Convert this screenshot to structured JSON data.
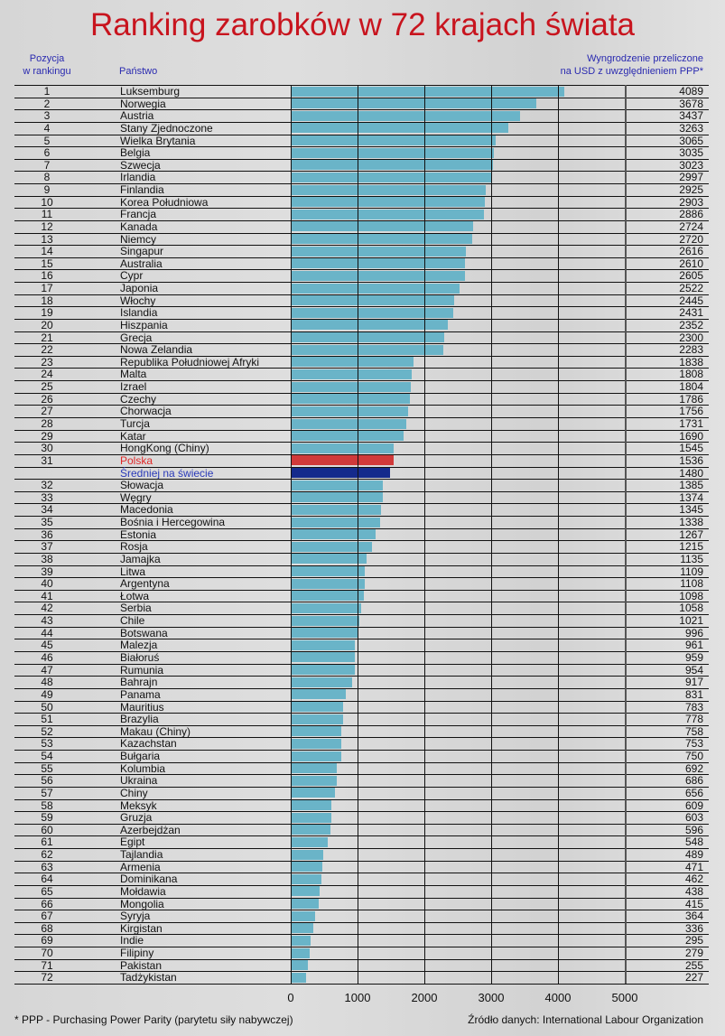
{
  "chart_data": {
    "type": "bar",
    "orientation": "horizontal",
    "title": "Ranking zarobków w 72 krajach świata",
    "column_headers": {
      "position": "Pozycja w rankingu",
      "country": "Państwo",
      "value": "Wyngrodzenie przeliczone na USD z uwzględnieniem PPP*"
    },
    "xlim": [
      0,
      5000
    ],
    "xticks": [
      "0",
      "1000",
      "2000",
      "3000",
      "4000",
      "5000"
    ],
    "grid": true,
    "colors": {
      "default": "#6ab4c8",
      "highlight": "#d03a3a",
      "average": "#142a8c",
      "title": "#c8141e"
    },
    "rows": [
      {
        "rank": "1",
        "country": "Luksemburg",
        "value": 4089
      },
      {
        "rank": "2",
        "country": "Norwegia",
        "value": 3678
      },
      {
        "rank": "3",
        "country": "Austria",
        "value": 3437
      },
      {
        "rank": "4",
        "country": "Stany Zjednoczone",
        "value": 3263
      },
      {
        "rank": "5",
        "country": "Wielka Brytania",
        "value": 3065
      },
      {
        "rank": "6",
        "country": "Belgia",
        "value": 3035
      },
      {
        "rank": "7",
        "country": "Szwecja",
        "value": 3023
      },
      {
        "rank": "8",
        "country": "Irlandia",
        "value": 2997
      },
      {
        "rank": "9",
        "country": "Finlandia",
        "value": 2925
      },
      {
        "rank": "10",
        "country": "Korea Południowa",
        "value": 2903
      },
      {
        "rank": "11",
        "country": "Francja",
        "value": 2886
      },
      {
        "rank": "12",
        "country": "Kanada",
        "value": 2724
      },
      {
        "rank": "13",
        "country": "Niemcy",
        "value": 2720
      },
      {
        "rank": "14",
        "country": "Singapur",
        "value": 2616
      },
      {
        "rank": "15",
        "country": "Australia",
        "value": 2610
      },
      {
        "rank": "16",
        "country": "Cypr",
        "value": 2605
      },
      {
        "rank": "17",
        "country": "Japonia",
        "value": 2522
      },
      {
        "rank": "18",
        "country": "Włochy",
        "value": 2445
      },
      {
        "rank": "19",
        "country": "Islandia",
        "value": 2431
      },
      {
        "rank": "20",
        "country": "Hiszpania",
        "value": 2352
      },
      {
        "rank": "21",
        "country": "Grecja",
        "value": 2300
      },
      {
        "rank": "22",
        "country": "Nowa Zelandia",
        "value": 2283
      },
      {
        "rank": "23",
        "country": "Republika Południowej Afryki",
        "value": 1838
      },
      {
        "rank": "24",
        "country": "Malta",
        "value": 1808
      },
      {
        "rank": "25",
        "country": "Izrael",
        "value": 1804
      },
      {
        "rank": "26",
        "country": "Czechy",
        "value": 1786
      },
      {
        "rank": "27",
        "country": "Chorwacja",
        "value": 1756
      },
      {
        "rank": "28",
        "country": "Turcja",
        "value": 1731
      },
      {
        "rank": "29",
        "country": "Katar",
        "value": 1690
      },
      {
        "rank": "30",
        "country": "HongKong (Chiny)",
        "value": 1545
      },
      {
        "rank": "31",
        "country": "Polska",
        "value": 1536,
        "style": "highlight"
      },
      {
        "rank": "",
        "country": "Średniej na świecie",
        "value": 1480,
        "style": "average"
      },
      {
        "rank": "32",
        "country": "Słowacja",
        "value": 1385
      },
      {
        "rank": "33",
        "country": "Węgry",
        "value": 1374
      },
      {
        "rank": "34",
        "country": "Macedonia",
        "value": 1345
      },
      {
        "rank": "35",
        "country": "Bośnia i Hercegowina",
        "value": 1338
      },
      {
        "rank": "36",
        "country": "Estonia",
        "value": 1267
      },
      {
        "rank": "37",
        "country": "Rosja",
        "value": 1215
      },
      {
        "rank": "38",
        "country": "Jamajka",
        "value": 1135
      },
      {
        "rank": "39",
        "country": "Litwa",
        "value": 1109
      },
      {
        "rank": "40",
        "country": "Argentyna",
        "value": 1108
      },
      {
        "rank": "41",
        "country": "Łotwa",
        "value": 1098
      },
      {
        "rank": "42",
        "country": "Serbia",
        "value": 1058
      },
      {
        "rank": "43",
        "country": "Chile",
        "value": 1021
      },
      {
        "rank": "44",
        "country": "Botswana",
        "value": 996
      },
      {
        "rank": "45",
        "country": "Malezja",
        "value": 961
      },
      {
        "rank": "46",
        "country": "Białoruś",
        "value": 959
      },
      {
        "rank": "47",
        "country": "Rumunia",
        "value": 954
      },
      {
        "rank": "48",
        "country": "Bahrajn",
        "value": 917
      },
      {
        "rank": "49",
        "country": "Panama",
        "value": 831
      },
      {
        "rank": "50",
        "country": "Mauritius",
        "value": 783
      },
      {
        "rank": "51",
        "country": "Brazylia",
        "value": 778
      },
      {
        "rank": "52",
        "country": "Makau (Chiny)",
        "value": 758
      },
      {
        "rank": "53",
        "country": "Kazachstan",
        "value": 753
      },
      {
        "rank": "54",
        "country": "Bułgaria",
        "value": 750
      },
      {
        "rank": "55",
        "country": "Kolumbia",
        "value": 692
      },
      {
        "rank": "56",
        "country": "Ukraina",
        "value": 686
      },
      {
        "rank": "57",
        "country": "Chiny",
        "value": 656
      },
      {
        "rank": "58",
        "country": "Meksyk",
        "value": 609
      },
      {
        "rank": "59",
        "country": "Gruzja",
        "value": 603
      },
      {
        "rank": "60",
        "country": "Azerbejdżan",
        "value": 596
      },
      {
        "rank": "61",
        "country": "Egipt",
        "value": 548
      },
      {
        "rank": "62",
        "country": "Tajlandia",
        "value": 489
      },
      {
        "rank": "63",
        "country": "Armenia",
        "value": 471
      },
      {
        "rank": "64",
        "country": "Dominikana",
        "value": 462
      },
      {
        "rank": "65",
        "country": "Mołdawia",
        "value": 438
      },
      {
        "rank": "66",
        "country": "Mongolia",
        "value": 415
      },
      {
        "rank": "67",
        "country": "Syryja",
        "value": 364
      },
      {
        "rank": "68",
        "country": "Kirgistan",
        "value": 336
      },
      {
        "rank": "69",
        "country": "Indie",
        "value": 295
      },
      {
        "rank": "70",
        "country": "Filipiny",
        "value": 279
      },
      {
        "rank": "71",
        "country": "Pakistan",
        "value": 255
      },
      {
        "rank": "72",
        "country": "Tadżykistan",
        "value": 227
      }
    ]
  },
  "header": {
    "position_line1": "Pozycja",
    "position_line2": "w rankingu",
    "country": "Państwo",
    "value_line1": "Wyngrodzenie przeliczone",
    "value_line2": "na USD z uwzględnieniem PPP*"
  },
  "footer": {
    "note": "* PPP - Purchasing Power Parity (parytetu siły nabywczej)",
    "source": "Źródło danych: International Labour Organization"
  }
}
